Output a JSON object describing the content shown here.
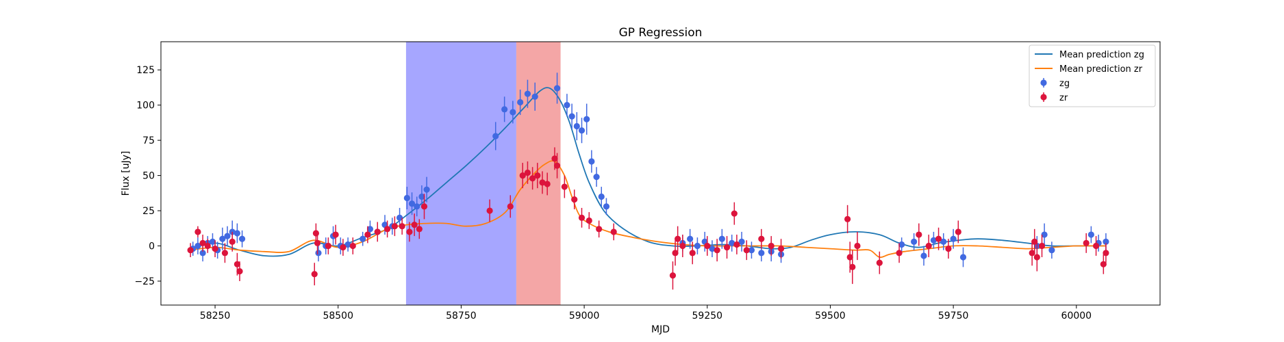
{
  "chart_data": {
    "type": "scatter",
    "title": "GP Regression",
    "xlabel": "MJD",
    "ylabel": "Flux [uJy]",
    "xlim": [
      58140,
      60170
    ],
    "ylim": [
      -42,
      145
    ],
    "xticks": [
      58250,
      58500,
      58750,
      59000,
      59250,
      59500,
      59750,
      60000
    ],
    "yticks": [
      -25,
      0,
      25,
      50,
      75,
      100,
      125
    ],
    "grid": false,
    "legend_position": "top-right",
    "spans": [
      {
        "x0": 58638,
        "x1": 58862,
        "color": "#8080ff",
        "opacity": 0.7
      },
      {
        "x0": 58862,
        "x1": 58952,
        "color": "#f08080",
        "opacity": 0.7
      }
    ],
    "colors": {
      "mean_zg": "#1f77b4",
      "mean_zr": "#ff7f0e",
      "zg": "#4169e1",
      "zr": "#dc143c"
    },
    "series": [
      {
        "name": "Mean prediction zg",
        "kind": "line",
        "color": "#1f77b4",
        "x": [
          58200,
          58250,
          58300,
          58350,
          58400,
          58450,
          58500,
          58550,
          58600,
          58640,
          58680,
          58720,
          58760,
          58800,
          58840,
          58880,
          58910,
          58930,
          58950,
          58970,
          58990,
          59010,
          59040,
          59080,
          59130,
          59180,
          59230,
          59280,
          59330,
          59380,
          59420,
          59460,
          59500,
          59550,
          59600,
          59640,
          59680,
          59720,
          59760,
          59800,
          59850,
          59900,
          59950,
          60000,
          60060
        ],
        "y": [
          -2,
          2,
          -3,
          -7,
          -6,
          2,
          0,
          6,
          12,
          22,
          33,
          45,
          57,
          70,
          84,
          99,
          110,
          112,
          104,
          88,
          65,
          45,
          25,
          12,
          3,
          0,
          0,
          1,
          0,
          -2,
          -1,
          4,
          8,
          10,
          8,
          2,
          -1,
          2,
          4,
          5,
          4,
          2,
          0,
          0,
          0
        ]
      },
      {
        "name": "Mean prediction zr",
        "kind": "line",
        "color": "#ff7f0e",
        "x": [
          58200,
          58250,
          58300,
          58350,
          58400,
          58450,
          58500,
          58550,
          58600,
          58640,
          58680,
          58720,
          58760,
          58800,
          58840,
          58870,
          58900,
          58920,
          58940,
          58960,
          58975,
          58990,
          59010,
          59050,
          59100,
          59150,
          59200,
          59250,
          59300,
          59350,
          59400,
          59450,
          59500,
          59550,
          59580,
          59600,
          59620,
          59650,
          59700,
          59750,
          59800,
          59850,
          59900,
          59950,
          60000,
          60060
        ],
        "y": [
          -3,
          -1,
          -3,
          -4,
          -4,
          4,
          -1,
          3,
          12,
          15,
          16,
          16,
          14,
          16,
          24,
          40,
          52,
          58,
          60,
          50,
          35,
          22,
          16,
          10,
          6,
          3,
          1,
          0,
          0,
          0,
          0,
          -1,
          -2,
          -3,
          -3,
          -8,
          -6,
          -4,
          -2,
          0,
          0,
          -1,
          -2,
          -1,
          0,
          0
        ]
      },
      {
        "name": "zg",
        "kind": "errorbar",
        "color": "#4169e1",
        "x": [
          58205,
          58215,
          58225,
          58235,
          58245,
          58255,
          58265,
          58275,
          58285,
          58295,
          58305,
          58460,
          58475,
          58490,
          58505,
          58520,
          58550,
          58565,
          58580,
          58595,
          58610,
          58625,
          58640,
          58650,
          58660,
          58670,
          58680,
          58820,
          58838,
          58855,
          58870,
          58885,
          58900,
          58945,
          58965,
          58975,
          58985,
          58995,
          59005,
          59015,
          59025,
          59035,
          59045,
          59200,
          59215,
          59230,
          59245,
          59260,
          59280,
          59300,
          59320,
          59340,
          59360,
          59380,
          59400,
          59645,
          59670,
          59690,
          59710,
          59730,
          59750,
          59770,
          59920,
          59935,
          59950,
          60030,
          60045,
          60060
        ],
        "y": [
          -2,
          0,
          -5,
          2,
          3,
          -3,
          5,
          7,
          10,
          9,
          5,
          -5,
          0,
          7,
          0,
          1,
          5,
          12,
          10,
          15,
          14,
          20,
          34,
          30,
          28,
          35,
          40,
          78,
          97,
          95,
          102,
          108,
          106,
          112,
          100,
          92,
          85,
          82,
          90,
          60,
          49,
          35,
          28,
          2,
          5,
          0,
          3,
          -2,
          5,
          2,
          3,
          -3,
          -5,
          -4,
          -6,
          1,
          3,
          -7,
          4,
          3,
          5,
          -8,
          0,
          8,
          -3,
          8,
          2,
          3
        ],
        "err": [
          5,
          6,
          6,
          5,
          6,
          6,
          8,
          7,
          8,
          7,
          6,
          6,
          6,
          7,
          6,
          5,
          5,
          6,
          6,
          7,
          6,
          7,
          8,
          8,
          7,
          8,
          9,
          10,
          9,
          8,
          9,
          10,
          10,
          11,
          8,
          9,
          10,
          9,
          11,
          8,
          7,
          7,
          6,
          6,
          7,
          6,
          7,
          6,
          7,
          6,
          7,
          6,
          6,
          7,
          6,
          5,
          6,
          7,
          6,
          6,
          7,
          7,
          7,
          8,
          6,
          6,
          6,
          6
        ]
      },
      {
        "name": "zr",
        "kind": "errorbar",
        "color": "#dc143c",
        "x": [
          58200,
          58215,
          58225,
          58235,
          58250,
          58270,
          58285,
          58295,
          58300,
          58452,
          58455,
          58458,
          58480,
          58495,
          58510,
          58530,
          58560,
          58580,
          58600,
          58615,
          58630,
          58645,
          58655,
          58665,
          58675,
          58808,
          58850,
          58875,
          58885,
          58895,
          58905,
          58915,
          58925,
          58940,
          58945,
          58960,
          58980,
          58995,
          59010,
          59030,
          59060,
          59180,
          59185,
          59190,
          59200,
          59220,
          59250,
          59270,
          59290,
          59305,
          59310,
          59330,
          59360,
          59380,
          59400,
          59535,
          59540,
          59545,
          59555,
          59600,
          59640,
          59680,
          59700,
          59720,
          59740,
          59760,
          59910,
          59915,
          59920,
          59930,
          60020,
          60040,
          60055,
          60060
        ],
        "y": [
          -3,
          10,
          2,
          0,
          -2,
          -5,
          3,
          -13,
          -18,
          -20,
          9,
          2,
          0,
          8,
          -1,
          0,
          8,
          10,
          12,
          14,
          14,
          10,
          15,
          12,
          28,
          25,
          28,
          50,
          52,
          48,
          50,
          45,
          44,
          62,
          57,
          42,
          33,
          20,
          18,
          12,
          10,
          -21,
          -5,
          5,
          0,
          -5,
          0,
          -3,
          -1,
          23,
          1,
          -3,
          5,
          0,
          -2,
          19,
          -8,
          -15,
          0,
          -12,
          -5,
          8,
          0,
          5,
          -2,
          10,
          -5,
          3,
          -8,
          0,
          2,
          0,
          -13,
          -5
        ],
        "err": [
          5,
          4,
          6,
          5,
          6,
          7,
          7,
          8,
          7,
          8,
          7,
          8,
          6,
          7,
          6,
          6,
          6,
          7,
          6,
          7,
          6,
          7,
          8,
          7,
          9,
          8,
          8,
          9,
          8,
          8,
          9,
          8,
          8,
          8,
          9,
          8,
          7,
          7,
          6,
          6,
          6,
          10,
          9,
          9,
          8,
          8,
          7,
          8,
          8,
          8,
          7,
          7,
          7,
          7,
          7,
          10,
          11,
          12,
          10,
          8,
          7,
          8,
          8,
          8,
          7,
          8,
          9,
          9,
          10,
          8,
          7,
          7,
          7,
          7
        ]
      }
    ]
  }
}
